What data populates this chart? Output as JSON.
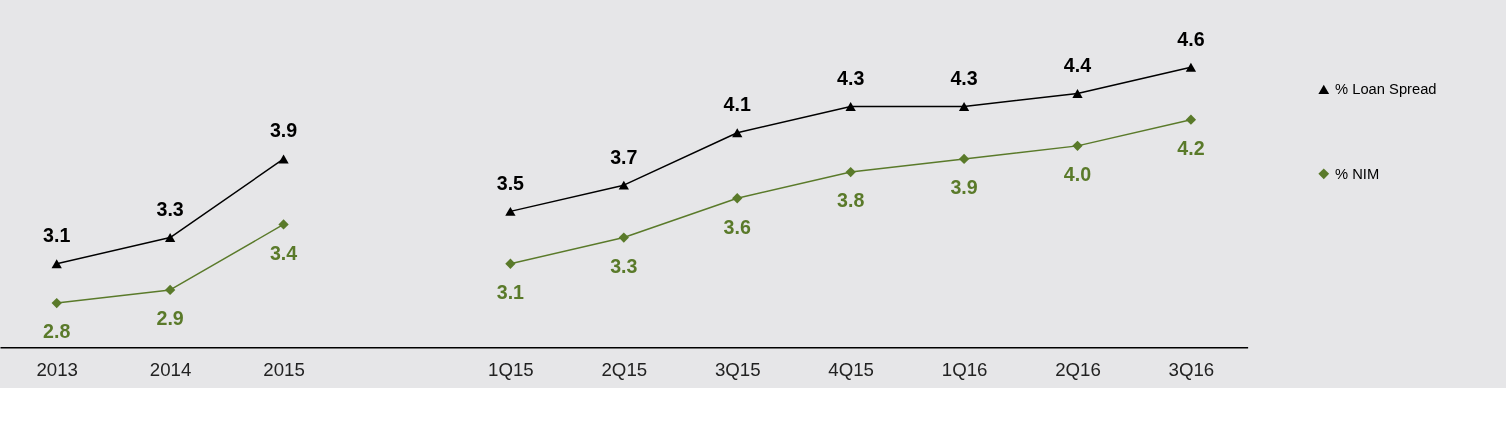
{
  "chart_data": {
    "type": "line",
    "categories": [
      "2013",
      "2014",
      "2015",
      null,
      "1Q15",
      "2Q15",
      "3Q15",
      "4Q15",
      "1Q16",
      "2Q16",
      "3Q16"
    ],
    "series": [
      {
        "name": "% Loan Spread",
        "color": "#000000",
        "marker": "triangle",
        "values": [
          3.1,
          3.3,
          3.9,
          null,
          3.5,
          3.7,
          4.1,
          4.3,
          4.3,
          4.4,
          4.6
        ],
        "value_labels": [
          "3.1",
          "3.3",
          "3.9",
          null,
          "3.5",
          "3.7",
          "4.1",
          "4.3",
          "4.3",
          "4.4",
          "4.6"
        ]
      },
      {
        "name": "% NIM",
        "color": "#5a7a2a",
        "marker": "diamond",
        "values": [
          2.8,
          2.9,
          3.4,
          null,
          3.1,
          3.3,
          3.6,
          3.8,
          3.9,
          4.0,
          4.2
        ],
        "value_labels": [
          "2.8",
          "2.9",
          "3.4",
          null,
          "3.1",
          "3.3",
          "3.6",
          "3.8",
          "3.9",
          "4.0",
          "4.2"
        ]
      }
    ],
    "legend": "right",
    "grid": false
  }
}
